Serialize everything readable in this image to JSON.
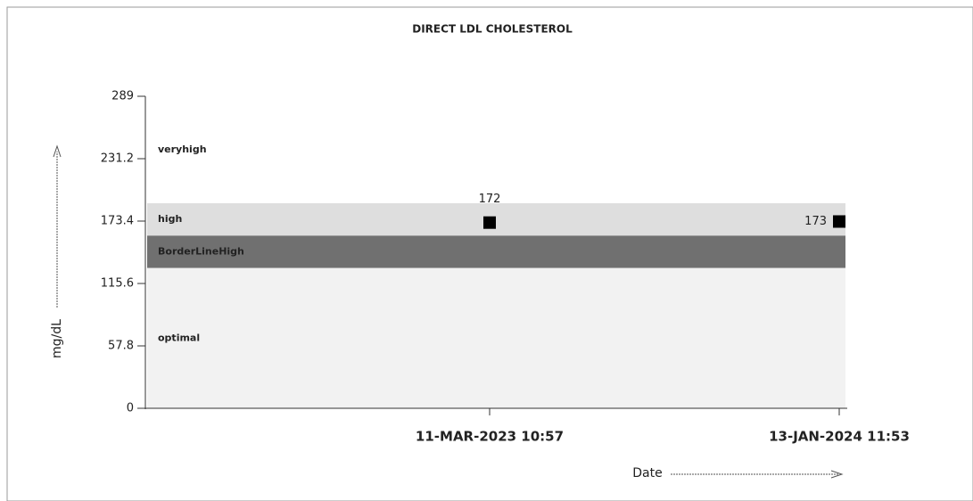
{
  "chart_data": {
    "type": "scatter",
    "title": "DIRECT LDL CHOLESTEROL",
    "x_label": "Date",
    "y_label": "mg/dL",
    "categories": [
      "11-MAR-2023 10:57",
      "13-JAN-2024 11:53"
    ],
    "values": [
      172,
      173
    ],
    "color": "#000000",
    "ylim": [
      0,
      289
    ],
    "yticks": [
      0,
      57.8,
      115.6,
      173.4,
      231.2,
      289
    ],
    "bands": [
      {
        "label": "optimal",
        "from": 0,
        "to": 130,
        "color": "#f2f2f2"
      },
      {
        "label": "BorderLineHigh",
        "from": 130,
        "to": 160,
        "color": "#707070"
      },
      {
        "label": "high",
        "from": 160,
        "to": 190,
        "color": "#dedede"
      },
      {
        "label": "veryhigh",
        "from": 190,
        "to": 289,
        "color": "#ffffff"
      }
    ]
  }
}
